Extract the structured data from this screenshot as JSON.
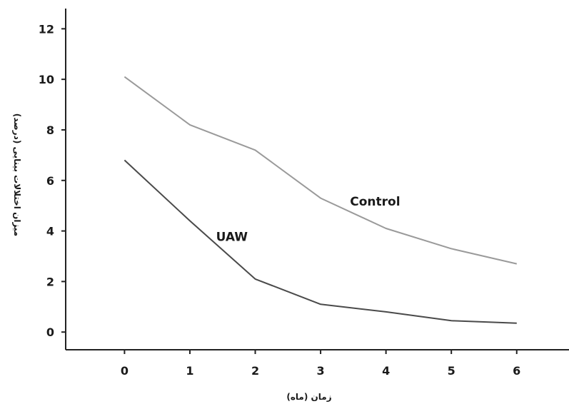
{
  "chart_data": {
    "type": "line",
    "x": [
      0,
      1,
      2,
      3,
      4,
      5,
      6
    ],
    "xlim": [
      -0.9,
      6.8
    ],
    "ylim": [
      -0.7,
      12.8
    ],
    "x_ticks": [
      0,
      1,
      2,
      3,
      4,
      5,
      6
    ],
    "y_ticks": [
      0,
      2,
      4,
      6,
      8,
      10,
      12
    ],
    "xlabel": "زمان (ماه)",
    "ylabel": "میزان اختلالات بینایی (درصد)",
    "grid": false,
    "series": [
      {
        "name": "Control",
        "values": [
          10.1,
          8.2,
          7.2,
          5.3,
          4.1,
          3.3,
          2.7
        ],
        "color": "#9a9a9a"
      },
      {
        "name": "UAW",
        "values": [
          6.8,
          4.4,
          2.1,
          1.1,
          0.8,
          0.45,
          0.35
        ],
        "color": "#4a4a4a"
      }
    ]
  }
}
